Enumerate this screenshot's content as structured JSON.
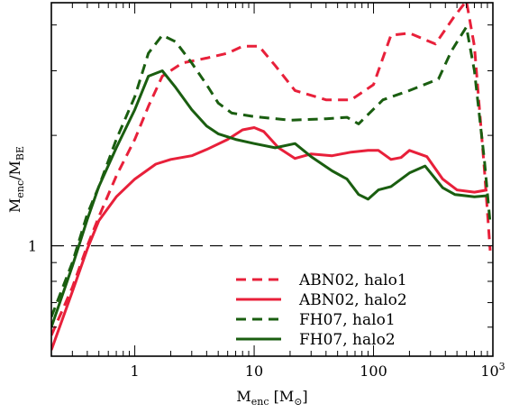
{
  "chart_data": {
    "type": "line",
    "title": "",
    "xlabel": {
      "main": "M",
      "sub": "enc",
      "unit_open": " [M",
      "unit_sym": "⊙",
      "unit_close": "]"
    },
    "ylabel": {
      "main_num": "M",
      "sub_num": "enc",
      "slash": "/",
      "main_den": "M",
      "sub_den": "BE"
    },
    "x_scale": "log",
    "y_scale": "log",
    "xlim": [
      0.2,
      1000
    ],
    "ylim": [
      0.5,
      4.6
    ],
    "x_ticks": [
      {
        "value": 1,
        "label": "1"
      },
      {
        "value": 10,
        "label": "10"
      },
      {
        "value": 100,
        "label": "100"
      },
      {
        "value": 1000,
        "label": "10",
        "sup": "3"
      }
    ],
    "y_ticks": [
      {
        "value": 1,
        "label": "1"
      }
    ],
    "reference_line": {
      "y": 1,
      "style": "long-dash",
      "color": "#000000"
    },
    "legend_position": "bottom-right",
    "series": [
      {
        "name": "ABN02, halo1",
        "color": "#e8203a",
        "style": "dashed",
        "points": [
          [
            0.2,
            0.57
          ],
          [
            0.3,
            0.77
          ],
          [
            0.4,
            1.0
          ],
          [
            0.5,
            1.2
          ],
          [
            0.7,
            1.55
          ],
          [
            1.0,
            1.95
          ],
          [
            1.3,
            2.4
          ],
          [
            1.7,
            2.9
          ],
          [
            2.5,
            3.15
          ],
          [
            4.0,
            3.25
          ],
          [
            6.0,
            3.35
          ],
          [
            8.0,
            3.5
          ],
          [
            11.0,
            3.5
          ],
          [
            15.0,
            3.1
          ],
          [
            22.0,
            2.65
          ],
          [
            40.0,
            2.5
          ],
          [
            65.0,
            2.5
          ],
          [
            100.0,
            2.75
          ],
          [
            140.0,
            3.75
          ],
          [
            200.0,
            3.8
          ],
          [
            330.0,
            3.55
          ],
          [
            470.0,
            4.2
          ],
          [
            600.0,
            4.65
          ],
          [
            700.0,
            3.5
          ],
          [
            850.0,
            1.6
          ],
          [
            950.0,
            0.97
          ]
        ]
      },
      {
        "name": "ABN02, halo2",
        "color": "#e8203a",
        "style": "solid",
        "points": [
          [
            0.2,
            0.52
          ],
          [
            0.3,
            0.75
          ],
          [
            0.4,
            0.98
          ],
          [
            0.5,
            1.17
          ],
          [
            0.7,
            1.36
          ],
          [
            1.0,
            1.52
          ],
          [
            1.5,
            1.67
          ],
          [
            2.0,
            1.72
          ],
          [
            3.0,
            1.76
          ],
          [
            4.0,
            1.83
          ],
          [
            6.0,
            1.95
          ],
          [
            8.0,
            2.07
          ],
          [
            10.0,
            2.1
          ],
          [
            12.0,
            2.05
          ],
          [
            16.0,
            1.85
          ],
          [
            22.0,
            1.73
          ],
          [
            30.0,
            1.78
          ],
          [
            45.0,
            1.76
          ],
          [
            65.0,
            1.8
          ],
          [
            90.0,
            1.82
          ],
          [
            110.0,
            1.82
          ],
          [
            140.0,
            1.72
          ],
          [
            170.0,
            1.74
          ],
          [
            200.0,
            1.82
          ],
          [
            280.0,
            1.75
          ],
          [
            380.0,
            1.52
          ],
          [
            500.0,
            1.42
          ],
          [
            700.0,
            1.4
          ],
          [
            900.0,
            1.42
          ]
        ]
      },
      {
        "name": "FH07, halo1",
        "color": "#1a5e10",
        "style": "dashed",
        "points": [
          [
            0.2,
            0.64
          ],
          [
            0.3,
            0.9
          ],
          [
            0.4,
            1.22
          ],
          [
            0.5,
            1.45
          ],
          [
            0.7,
            1.95
          ],
          [
            1.0,
            2.55
          ],
          [
            1.3,
            3.35
          ],
          [
            1.7,
            3.75
          ],
          [
            2.2,
            3.6
          ],
          [
            3.0,
            3.15
          ],
          [
            4.0,
            2.75
          ],
          [
            5.0,
            2.45
          ],
          [
            6.5,
            2.3
          ],
          [
            10.0,
            2.25
          ],
          [
            20.0,
            2.2
          ],
          [
            40.0,
            2.22
          ],
          [
            60.0,
            2.24
          ],
          [
            75.0,
            2.15
          ],
          [
            90.0,
            2.28
          ],
          [
            120.0,
            2.5
          ],
          [
            200.0,
            2.65
          ],
          [
            350.0,
            2.85
          ],
          [
            450.0,
            3.4
          ],
          [
            600.0,
            3.95
          ],
          [
            700.0,
            3.0
          ],
          [
            850.0,
            1.7
          ],
          [
            950.0,
            1.15
          ]
        ]
      },
      {
        "name": "FH07, halo2",
        "color": "#1a5e10",
        "style": "solid",
        "points": [
          [
            0.2,
            0.6
          ],
          [
            0.3,
            0.88
          ],
          [
            0.4,
            1.18
          ],
          [
            0.5,
            1.45
          ],
          [
            0.7,
            1.85
          ],
          [
            1.0,
            2.35
          ],
          [
            1.3,
            2.9
          ],
          [
            1.7,
            3.0
          ],
          [
            2.2,
            2.7
          ],
          [
            3.0,
            2.35
          ],
          [
            4.0,
            2.12
          ],
          [
            5.0,
            2.02
          ],
          [
            7.0,
            1.95
          ],
          [
            10.0,
            1.9
          ],
          [
            15.0,
            1.85
          ],
          [
            22.0,
            1.9
          ],
          [
            30.0,
            1.75
          ],
          [
            45.0,
            1.6
          ],
          [
            60.0,
            1.52
          ],
          [
            75.0,
            1.38
          ],
          [
            90.0,
            1.34
          ],
          [
            110.0,
            1.42
          ],
          [
            140.0,
            1.45
          ],
          [
            200.0,
            1.58
          ],
          [
            270.0,
            1.65
          ],
          [
            380.0,
            1.44
          ],
          [
            480.0,
            1.38
          ],
          [
            700.0,
            1.36
          ],
          [
            900.0,
            1.37
          ]
        ]
      }
    ]
  }
}
